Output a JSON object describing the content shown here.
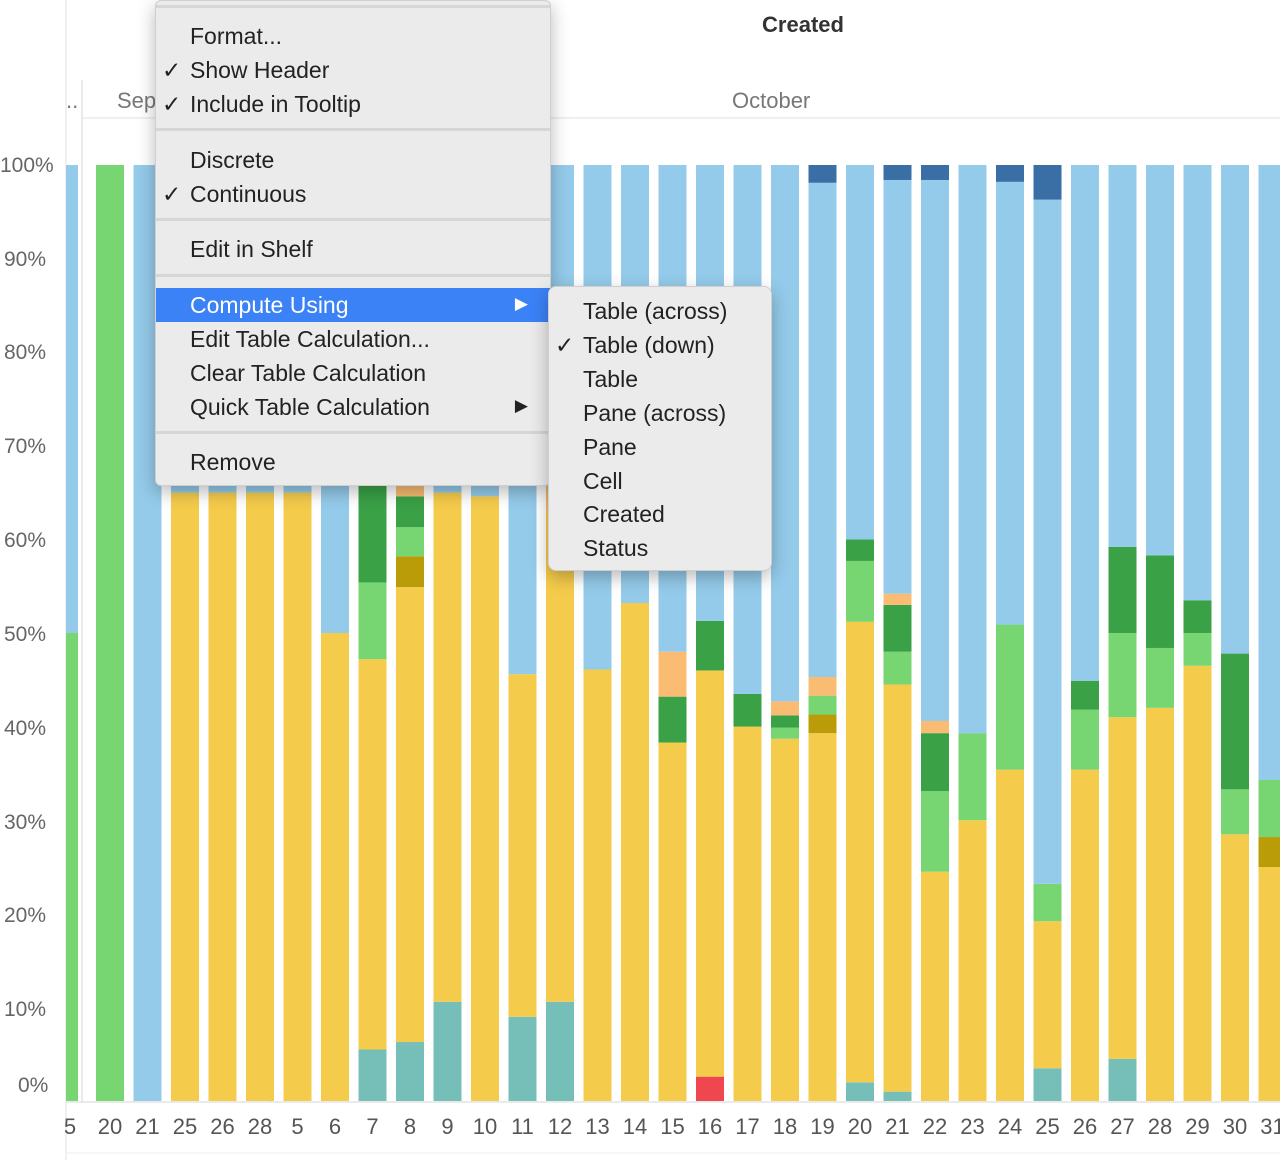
{
  "header": {
    "title": "Created"
  },
  "months": [
    "..",
    "Sep",
    "October"
  ],
  "y_axis_labels": [
    "100%",
    "90%",
    "80%",
    "70%",
    "60%",
    "50%",
    "40%",
    "30%",
    "20%",
    "10%",
    "0%"
  ],
  "context_menu": {
    "items": [
      {
        "label": "Format...",
        "checked": false
      },
      {
        "label": "Show Header",
        "checked": true
      },
      {
        "label": "Include in Tooltip",
        "checked": true
      },
      {
        "label": "Discrete",
        "checked": false
      },
      {
        "label": "Continuous",
        "checked": true
      },
      {
        "label": "Edit in Shelf",
        "checked": false
      },
      {
        "label": "Compute Using",
        "checked": false,
        "submenu": true,
        "highlighted": true
      },
      {
        "label": "Edit Table Calculation...",
        "checked": false
      },
      {
        "label": "Clear Table Calculation",
        "checked": false
      },
      {
        "label": "Quick Table Calculation",
        "checked": false,
        "submenu": true
      },
      {
        "label": "Remove",
        "checked": false
      }
    ],
    "check_glyph": "✓",
    "arrow_glyph": "▶"
  },
  "compute_using_submenu": {
    "items": [
      {
        "label": "Table (across)",
        "checked": false
      },
      {
        "label": "Table (down)",
        "checked": true
      },
      {
        "label": "Table",
        "checked": false
      },
      {
        "label": "Pane (across)",
        "checked": false
      },
      {
        "label": "Pane",
        "checked": false
      },
      {
        "label": "Cell",
        "checked": false
      },
      {
        "label": "Created",
        "checked": false
      },
      {
        "label": "Status",
        "checked": false
      }
    ]
  },
  "colors": {
    "yellow": "#f5cb4b",
    "teal": "#76bfb9",
    "light_blue": "#94cbea",
    "dark_blue": "#3a6fa6",
    "green": "#3aa147",
    "light_green": "#77d572",
    "orange": "#f9bc72",
    "olive": "#b99c07",
    "red": "#f0464f",
    "highlight": "#3b82f7"
  },
  "chart_data": {
    "type": "bar",
    "stacked": true,
    "ylim": [
      0,
      100
    ],
    "categories": [
      "5",
      "20",
      "21",
      "25",
      "26",
      "28",
      "5",
      "6",
      "7",
      "8",
      "9",
      "10",
      "11",
      "12",
      "13",
      "14",
      "15",
      "16",
      "17",
      "18",
      "19",
      "20",
      "21",
      "22",
      "23",
      "24",
      "25",
      "26",
      "27",
      "28",
      "29",
      "30",
      "31"
    ],
    "series_order": [
      "red",
      "teal",
      "yellow",
      "olive",
      "light_green",
      "green",
      "orange",
      "light_blue",
      "dark_blue"
    ],
    "stacks": [
      {
        "light_green": 50,
        "light_blue": 50
      },
      {
        "light_green": 100
      },
      {
        "light_blue": 100
      },
      {
        "yellow": 65,
        "light_blue": 35
      },
      {
        "yellow": 65,
        "light_blue": 35
      },
      {
        "yellow": 65,
        "light_blue": 35
      },
      {
        "yellow": 65,
        "light_blue": 35
      },
      {
        "yellow": 50,
        "light_blue": 50
      },
      {
        "teal": 5.5,
        "yellow": 41.7,
        "light_green": 8.2,
        "green": 10.5,
        "light_blue": 34.1
      },
      {
        "teal": 6.3,
        "yellow": 48.6,
        "olive": 3.3,
        "light_green": 3.1,
        "green": 3.3,
        "orange": 1.1,
        "light_blue": 34.3
      },
      {
        "teal": 10.6,
        "yellow": 54.4,
        "light_blue": 35
      },
      {
        "yellow": 64.6,
        "light_blue": 35.4
      },
      {
        "teal": 9,
        "yellow": 36.6,
        "light_blue": 54.4
      },
      {
        "teal": 10.6,
        "yellow": 52.5,
        "orange": 3,
        "light_blue": 33.9
      },
      {
        "yellow": 46.1,
        "light_blue": 53.9
      },
      {
        "yellow": 53.2,
        "light_blue": 46.8
      },
      {
        "yellow": 38.3,
        "green": 4.9,
        "orange": 4.8,
        "light_blue": 52
      },
      {
        "red": 2.6,
        "yellow": 43.4,
        "green": 5.3,
        "light_blue": 48.7
      },
      {
        "yellow": 40,
        "green": 3.5,
        "light_blue": 56.5
      },
      {
        "yellow": 38.7,
        "light_green": 1.2,
        "green": 1.3,
        "orange": 1.5,
        "light_blue": 57.3
      },
      {
        "yellow": 39.3,
        "olive": 2,
        "light_green": 2,
        "orange": 2,
        "light_blue": 52.8,
        "dark_blue": 1.9
      },
      {
        "teal": 2,
        "yellow": 49.2,
        "light_green": 6.5,
        "green": 2.3,
        "light_blue": 40
      },
      {
        "teal": 1,
        "yellow": 43.5,
        "light_green": 3.5,
        "green": 5,
        "orange": 1.2,
        "light_blue": 44.2,
        "dark_blue": 1.6
      },
      {
        "yellow": 24.5,
        "light_green": 8.6,
        "green": 6.2,
        "orange": 1.3,
        "light_blue": 57.8,
        "dark_blue": 1.6
      },
      {
        "yellow": 30,
        "light_green": 9.3,
        "light_blue": 60.7
      },
      {
        "yellow": 35.4,
        "light_green": 15.5,
        "light_blue": 47.3,
        "dark_blue": 1.8
      },
      {
        "teal": 3.5,
        "yellow": 15.7,
        "light_green": 4,
        "light_blue": 73.1,
        "dark_blue": 3.7
      },
      {
        "yellow": 35.4,
        "light_green": 6.4,
        "green": 3.1,
        "light_blue": 55.1
      },
      {
        "teal": 4.5,
        "yellow": 36.5,
        "light_green": 9,
        "green": 9.2,
        "light_blue": 40.8
      },
      {
        "yellow": 42,
        "light_green": 6.4,
        "green": 9.9,
        "light_blue": 41.7
      },
      {
        "yellow": 46.5,
        "light_green": 3.5,
        "green": 3.5,
        "light_blue": 46.5
      },
      {
        "yellow": 28.5,
        "light_green": 4.8,
        "green": 14.5,
        "light_blue": 52.2
      },
      {
        "yellow": 25,
        "olive": 3.2,
        "light_green": 6.1,
        "light_blue": 65.7
      }
    ]
  }
}
